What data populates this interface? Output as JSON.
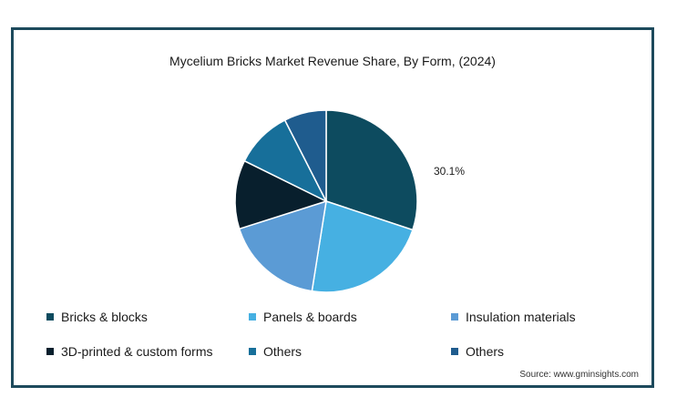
{
  "chart_data": {
    "type": "pie",
    "title": "Mycelium Bricks Market Revenue Share, By Form,  (2024)",
    "categories": [
      "Bricks & blocks",
      "Panels & boards",
      "Insulation materials",
      "3D-printed & custom forms",
      "Others",
      "Others"
    ],
    "values": [
      30.1,
      22.4,
      17.6,
      12.2,
      10.2,
      7.5
    ],
    "colors": [
      "#0d4b5f",
      "#46b0e2",
      "#5b9bd5",
      "#081f2d",
      "#176f9a",
      "#1f5c8e"
    ],
    "data_labels": [
      {
        "index": 0,
        "text": "30.1%"
      }
    ],
    "legend_position": "bottom",
    "start_angle": "12 o'clock, clockwise"
  },
  "source": "Source: www.gminsights.com"
}
